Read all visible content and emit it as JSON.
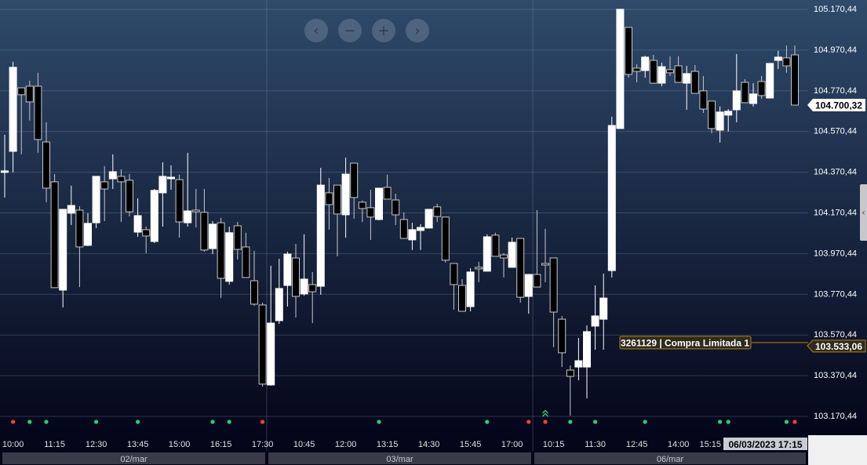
{
  "colors": {
    "bg_top": "#2f4a6b",
    "bg_bottom": "#04061a",
    "up": "#ffffff",
    "down": "#000000",
    "wick": "#c8c8c8",
    "buy_signal": "#2ecc71",
    "sell_signal": "#ff3b3b",
    "order": "#b8860b"
  },
  "navigation": {
    "prev_icon": "chevron-left-icon",
    "zoom_out_icon": "minus-icon",
    "zoom_in_icon": "plus-icon",
    "next_icon": "chevron-right-icon",
    "prev": "‹",
    "zoom_out": "−",
    "zoom_in": "+",
    "next": "›"
  },
  "side_tab": {
    "icon": "chevron-left-icon",
    "glyph": "‹"
  },
  "price_axis": {
    "labels": [
      "105.170,44",
      "104.970,44",
      "104.770,44",
      "104.570,44",
      "104.370,44",
      "104.170,44",
      "103.970,44",
      "103.770,44",
      "103.570,44",
      "103.370,44",
      "103.170,44"
    ]
  },
  "last_price": {
    "label": "104.700,32",
    "value": 104700.32
  },
  "order": {
    "label": "3261129 | Compra Limitada 1",
    "price_label": "103.533,06",
    "value": 103533.06
  },
  "time_axis": {
    "labels": [
      "10:00",
      "11:15",
      "12:30",
      "13:45",
      "15:00",
      "16:15",
      "17:30",
      "10:45",
      "12:00",
      "13:15",
      "14:30",
      "15:45",
      "17:00",
      "10:15",
      "11:30",
      "12:45",
      "14:00",
      "15:15"
    ],
    "crosshair": "06/03/2023 17:15"
  },
  "days": [
    "02/mar",
    "03/mar",
    "06/mar"
  ],
  "chart_data": {
    "type": "candlestick",
    "ylim": [
      103170.44,
      105170.44
    ],
    "ohlc": [
      [
        104373,
        104554,
        104246,
        104377
      ],
      [
        104473,
        104913,
        104369,
        104886
      ],
      [
        104785,
        104785,
        104458,
        104751
      ],
      [
        104793,
        104820,
        104624,
        104716
      ],
      [
        104793,
        104859,
        104466,
        104531
      ],
      [
        104519,
        104616,
        104223,
        104292
      ],
      [
        104323,
        104361,
        103803,
        103803
      ],
      [
        103791,
        104188,
        103706,
        104188
      ],
      [
        104169,
        104304,
        104111,
        104207
      ],
      [
        104184,
        104203,
        103806,
        104003
      ],
      [
        104011,
        104169,
        104007,
        104119
      ],
      [
        104122,
        104350,
        104096,
        104350
      ],
      [
        104323,
        104400,
        104130,
        104288
      ],
      [
        104338,
        104458,
        104288,
        104373
      ],
      [
        104350,
        104385,
        104126,
        104323
      ],
      [
        104331,
        104361,
        104153,
        104176
      ],
      [
        104076,
        104242,
        104053,
        104157
      ],
      [
        104088,
        104103,
        103972,
        104057
      ],
      [
        104030,
        104288,
        104022,
        104281
      ],
      [
        104269,
        104419,
        104103,
        104350
      ],
      [
        104342,
        104404,
        104284,
        104346
      ],
      [
        104334,
        104358,
        104049,
        104126
      ],
      [
        104122,
        104466,
        104103,
        104180
      ],
      [
        104184,
        104288,
        104099,
        104180
      ],
      [
        104173,
        104288,
        103980,
        103988
      ],
      [
        103995,
        104130,
        103968,
        104115
      ],
      [
        104122,
        104146,
        103752,
        103849
      ],
      [
        103834,
        104103,
        103818,
        104073
      ],
      [
        104107,
        104126,
        103941,
        103991
      ],
      [
        104003,
        104073,
        103853,
        103853
      ],
      [
        103837,
        103984,
        103714,
        103722
      ],
      [
        103718,
        103729,
        103317,
        103329
      ],
      [
        103325,
        103911,
        103321,
        103629
      ],
      [
        103641,
        103945,
        103625,
        103799
      ],
      [
        103814,
        103980,
        103710,
        103968
      ],
      [
        103949,
        104018,
        103656,
        103760
      ],
      [
        103772,
        104065,
        103764,
        103845
      ],
      [
        103818,
        103880,
        103629,
        103783
      ],
      [
        103810,
        104392,
        103768,
        104307
      ],
      [
        104269,
        104342,
        104088,
        104211
      ],
      [
        104307,
        104307,
        103957,
        104165
      ],
      [
        104161,
        104442,
        104049,
        104361
      ],
      [
        104415,
        104415,
        104142,
        104246
      ],
      [
        104223,
        104231,
        104126,
        104192
      ],
      [
        104196,
        104284,
        104038,
        104150
      ],
      [
        104138,
        104292,
        104134,
        104292
      ],
      [
        104296,
        104358,
        104238,
        104238
      ],
      [
        104234,
        104265,
        104111,
        104161
      ],
      [
        104138,
        104173,
        104045,
        104045
      ],
      [
        104038,
        104122,
        103988,
        104088
      ],
      [
        104084,
        104115,
        103988,
        104099
      ],
      [
        104096,
        104188,
        104096,
        104188
      ],
      [
        104200,
        104215,
        104126,
        104153
      ],
      [
        104150,
        104150,
        103926,
        103938
      ],
      [
        103922,
        103922,
        103695,
        103818
      ],
      [
        103814,
        103845,
        103687,
        103687
      ],
      [
        103710,
        103899,
        103687,
        103880
      ],
      [
        103903,
        103930,
        103830,
        103899
      ],
      [
        103884,
        104065,
        103884,
        104053
      ],
      [
        104061,
        104073,
        103957,
        103957
      ],
      [
        103964,
        103972,
        103853,
        103949
      ],
      [
        103903,
        104049,
        103903,
        104026
      ],
      [
        104045,
        104045,
        103729,
        103756
      ],
      [
        103760,
        103868,
        103675,
        103868
      ],
      [
        103868,
        104184,
        103806,
        103806
      ],
      [
        103922,
        104092,
        103830,
        103918
      ],
      [
        103949,
        103949,
        103510,
        103683
      ],
      [
        103648,
        103664,
        103413,
        103483
      ],
      [
        103398,
        103421,
        103174,
        103367
      ],
      [
        103413,
        103556,
        103348,
        103444
      ],
      [
        103413,
        103618,
        103259,
        103587
      ],
      [
        103614,
        103814,
        103498,
        103664
      ],
      [
        103648,
        103872,
        103498,
        103752
      ],
      [
        103887,
        104643,
        103853,
        104600
      ],
      [
        104585,
        105171,
        104585,
        105171
      ],
      [
        105082,
        105082,
        104835,
        104851
      ],
      [
        104882,
        104901,
        104812,
        104866
      ],
      [
        104870,
        104943,
        104835,
        104936
      ],
      [
        104920,
        104947,
        104805,
        104808
      ],
      [
        104808,
        104909,
        104793,
        104889
      ],
      [
        104874,
        104940,
        104843,
        104859
      ],
      [
        104893,
        104940,
        104812,
        104812
      ],
      [
        104808,
        104893,
        104677,
        104855
      ],
      [
        104866,
        104897,
        104758,
        104758
      ],
      [
        104770,
        104843,
        104662,
        104681
      ],
      [
        104720,
        104720,
        104562,
        104585
      ],
      [
        104577,
        104693,
        104516,
        104666
      ],
      [
        104651,
        104681,
        104570,
        104670
      ],
      [
        104677,
        104951,
        104616,
        104770
      ],
      [
        104812,
        104828,
        104712,
        104712
      ],
      [
        104708,
        104808,
        104693,
        104755
      ],
      [
        104816,
        104843,
        104731,
        104747
      ],
      [
        104735,
        104905,
        104735,
        104905
      ],
      [
        104920,
        104967,
        104878,
        104936
      ],
      [
        104932,
        104993,
        104859,
        104893
      ],
      [
        104947,
        104993,
        104700,
        104700.32
      ]
    ],
    "day_breaks": [
      32,
      64
    ],
    "signals": [
      {
        "candle": 1,
        "type": "sell"
      },
      {
        "candle": 3,
        "type": "buy"
      },
      {
        "candle": 5,
        "type": "buy"
      },
      {
        "candle": 11,
        "type": "buy"
      },
      {
        "candle": 16,
        "type": "buy"
      },
      {
        "candle": 25,
        "type": "buy"
      },
      {
        "candle": 27,
        "type": "buy"
      },
      {
        "candle": 31,
        "type": "sell"
      },
      {
        "candle": 45,
        "type": "buy"
      },
      {
        "candle": 58,
        "type": "buy"
      },
      {
        "candle": 63,
        "type": "sell"
      },
      {
        "candle": 65,
        "type": "sell"
      },
      {
        "candle": 68,
        "type": "buy"
      },
      {
        "candle": 71,
        "type": "buy"
      },
      {
        "candle": 77,
        "type": "buy"
      },
      {
        "candle": 86,
        "type": "buy"
      },
      {
        "candle": 87,
        "type": "buy"
      },
      {
        "candle": 94,
        "type": "buy"
      },
      {
        "candle": 95,
        "type": "sell"
      }
    ],
    "arrow_marker": {
      "candle": 65,
      "type": "buy",
      "glyph": "⌃⌃"
    }
  }
}
